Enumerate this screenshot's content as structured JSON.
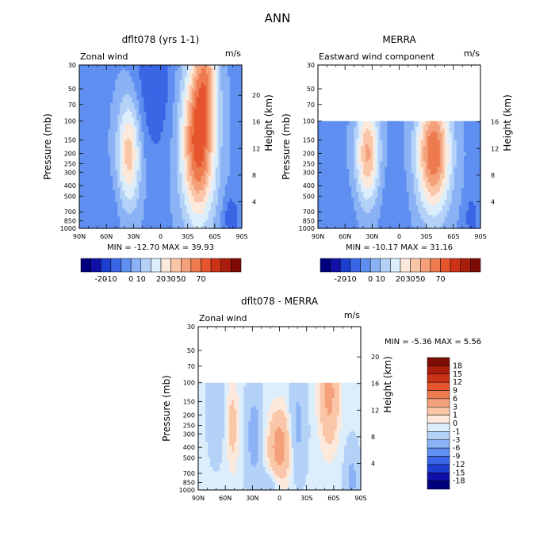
{
  "figure_title": "ANN",
  "colors": {
    "model": [
      "#00007f",
      "#1010a6",
      "#1c3fcf",
      "#3a66e6",
      "#5f8ff0",
      "#8ab2f5",
      "#b4d2f8",
      "#dceefc",
      "#fde9dc",
      "#f9c6a8",
      "#f4a07a",
      "#ee7a4f",
      "#e6552d",
      "#cc3216",
      "#a81d0c",
      "#7f0b05"
    ],
    "diff": [
      "#00007f",
      "#1010a6",
      "#1c3fcf",
      "#3a66e6",
      "#5f8ff0",
      "#8ab2f5",
      "#b4d2f8",
      "#dceefc",
      "#fde9dc",
      "#f9c6a8",
      "#f4a07a",
      "#ee7a4f",
      "#e6552d",
      "#cc3216",
      "#a81d0c",
      "#7f0b05"
    ]
  },
  "chart_data": [
    {
      "id": "top-left",
      "type": "heatmap",
      "title": "dflt078 (yrs 1-1)",
      "subtitle_left": "Zonal wind",
      "subtitle_right": "m/s",
      "ylabel": "Pressure (mb)",
      "ylabel_right": "Height (km)",
      "x_ticks": [
        "90N",
        "60N",
        "30N",
        "0",
        "30S",
        "60S",
        "90S"
      ],
      "x_values": [
        90,
        60,
        30,
        0,
        -30,
        -60,
        -90
      ],
      "y_ticks": [
        "30",
        "50",
        "70",
        "100",
        "150",
        "200",
        "250",
        "300",
        "400",
        "500",
        "700",
        "850",
        "1000"
      ],
      "y_values": [
        30,
        50,
        70,
        100,
        150,
        200,
        250,
        300,
        400,
        500,
        700,
        850,
        1000
      ],
      "height_ticks": [
        "20",
        "16",
        "12",
        "8",
        "4"
      ],
      "height_values": [
        20,
        16,
        12,
        8,
        4
      ],
      "ylim": [
        1000,
        30
      ],
      "data_top_mb": 30,
      "stats": "MIN = -12.70   MAX =  39.93",
      "min": -12.7,
      "max": 39.93,
      "colorbar_labels": [
        "-20",
        "-10",
        "0",
        "10",
        "20",
        "30",
        "50",
        "70"
      ],
      "levels": [
        -25,
        -20,
        -15,
        -10,
        -5,
        0,
        5,
        10,
        15,
        20,
        25,
        30,
        40,
        50,
        60,
        70
      ]
    },
    {
      "id": "top-right",
      "type": "heatmap",
      "title": "MERRA",
      "subtitle_left": "Eastward wind component",
      "subtitle_right": "m/s",
      "ylabel": "Pressure (mb)",
      "ylabel_right": "Height (km)",
      "x_ticks": [
        "90N",
        "60N",
        "30N",
        "0",
        "30S",
        "60S",
        "90S"
      ],
      "x_values": [
        90,
        60,
        30,
        0,
        -30,
        -60,
        -90
      ],
      "y_ticks": [
        "30",
        "50",
        "70",
        "100",
        "150",
        "200",
        "250",
        "300",
        "400",
        "500",
        "700",
        "850",
        "1000"
      ],
      "y_values": [
        30,
        50,
        70,
        100,
        150,
        200,
        250,
        300,
        400,
        500,
        700,
        850,
        1000
      ],
      "height_ticks": [
        "16",
        "12",
        "8",
        "4"
      ],
      "height_values": [
        16,
        12,
        8,
        4
      ],
      "ylim": [
        1000,
        30
      ],
      "data_top_mb": 100,
      "stats": "MIN = -10.17   MAX =  31.16",
      "min": -10.17,
      "max": 31.16,
      "colorbar_labels": [
        "-20",
        "-10",
        "0",
        "10",
        "20",
        "30",
        "50",
        "70"
      ],
      "levels": [
        -25,
        -20,
        -15,
        -10,
        -5,
        0,
        5,
        10,
        15,
        20,
        25,
        30,
        40,
        50,
        60,
        70
      ]
    },
    {
      "id": "bottom",
      "type": "heatmap",
      "title": "dflt078 - MERRA",
      "subtitle_left": "Zonal wind",
      "subtitle_right": "m/s",
      "ylabel": "Pressure (mb)",
      "ylabel_right": "Height (km)",
      "x_ticks": [
        "90N",
        "60N",
        "30N",
        "0",
        "30S",
        "60S",
        "90S"
      ],
      "x_values": [
        90,
        60,
        30,
        0,
        -30,
        -60,
        -90
      ],
      "y_ticks": [
        "30",
        "50",
        "70",
        "100",
        "150",
        "200",
        "250",
        "300",
        "400",
        "500",
        "700",
        "850",
        "1000"
      ],
      "y_values": [
        30,
        50,
        70,
        100,
        150,
        200,
        250,
        300,
        400,
        500,
        700,
        850,
        1000
      ],
      "height_ticks": [
        "20",
        "16",
        "12",
        "8",
        "4"
      ],
      "height_values": [
        20,
        16,
        12,
        8,
        4
      ],
      "ylim": [
        1000,
        30
      ],
      "data_top_mb": 100,
      "stats": "MIN =   -5.36   MAX =    5.56",
      "min": -5.36,
      "max": 5.56,
      "colorbar_labels": [
        "18",
        "15",
        "12",
        "9",
        "6",
        "3",
        "1",
        "0",
        "-1",
        "-3",
        "-6",
        "-9",
        "-12",
        "-15",
        "-18"
      ],
      "levels": [
        -18,
        -15,
        -12,
        -9,
        -6,
        -3,
        -1,
        0,
        1,
        3,
        6,
        9,
        12,
        15,
        18
      ]
    }
  ]
}
